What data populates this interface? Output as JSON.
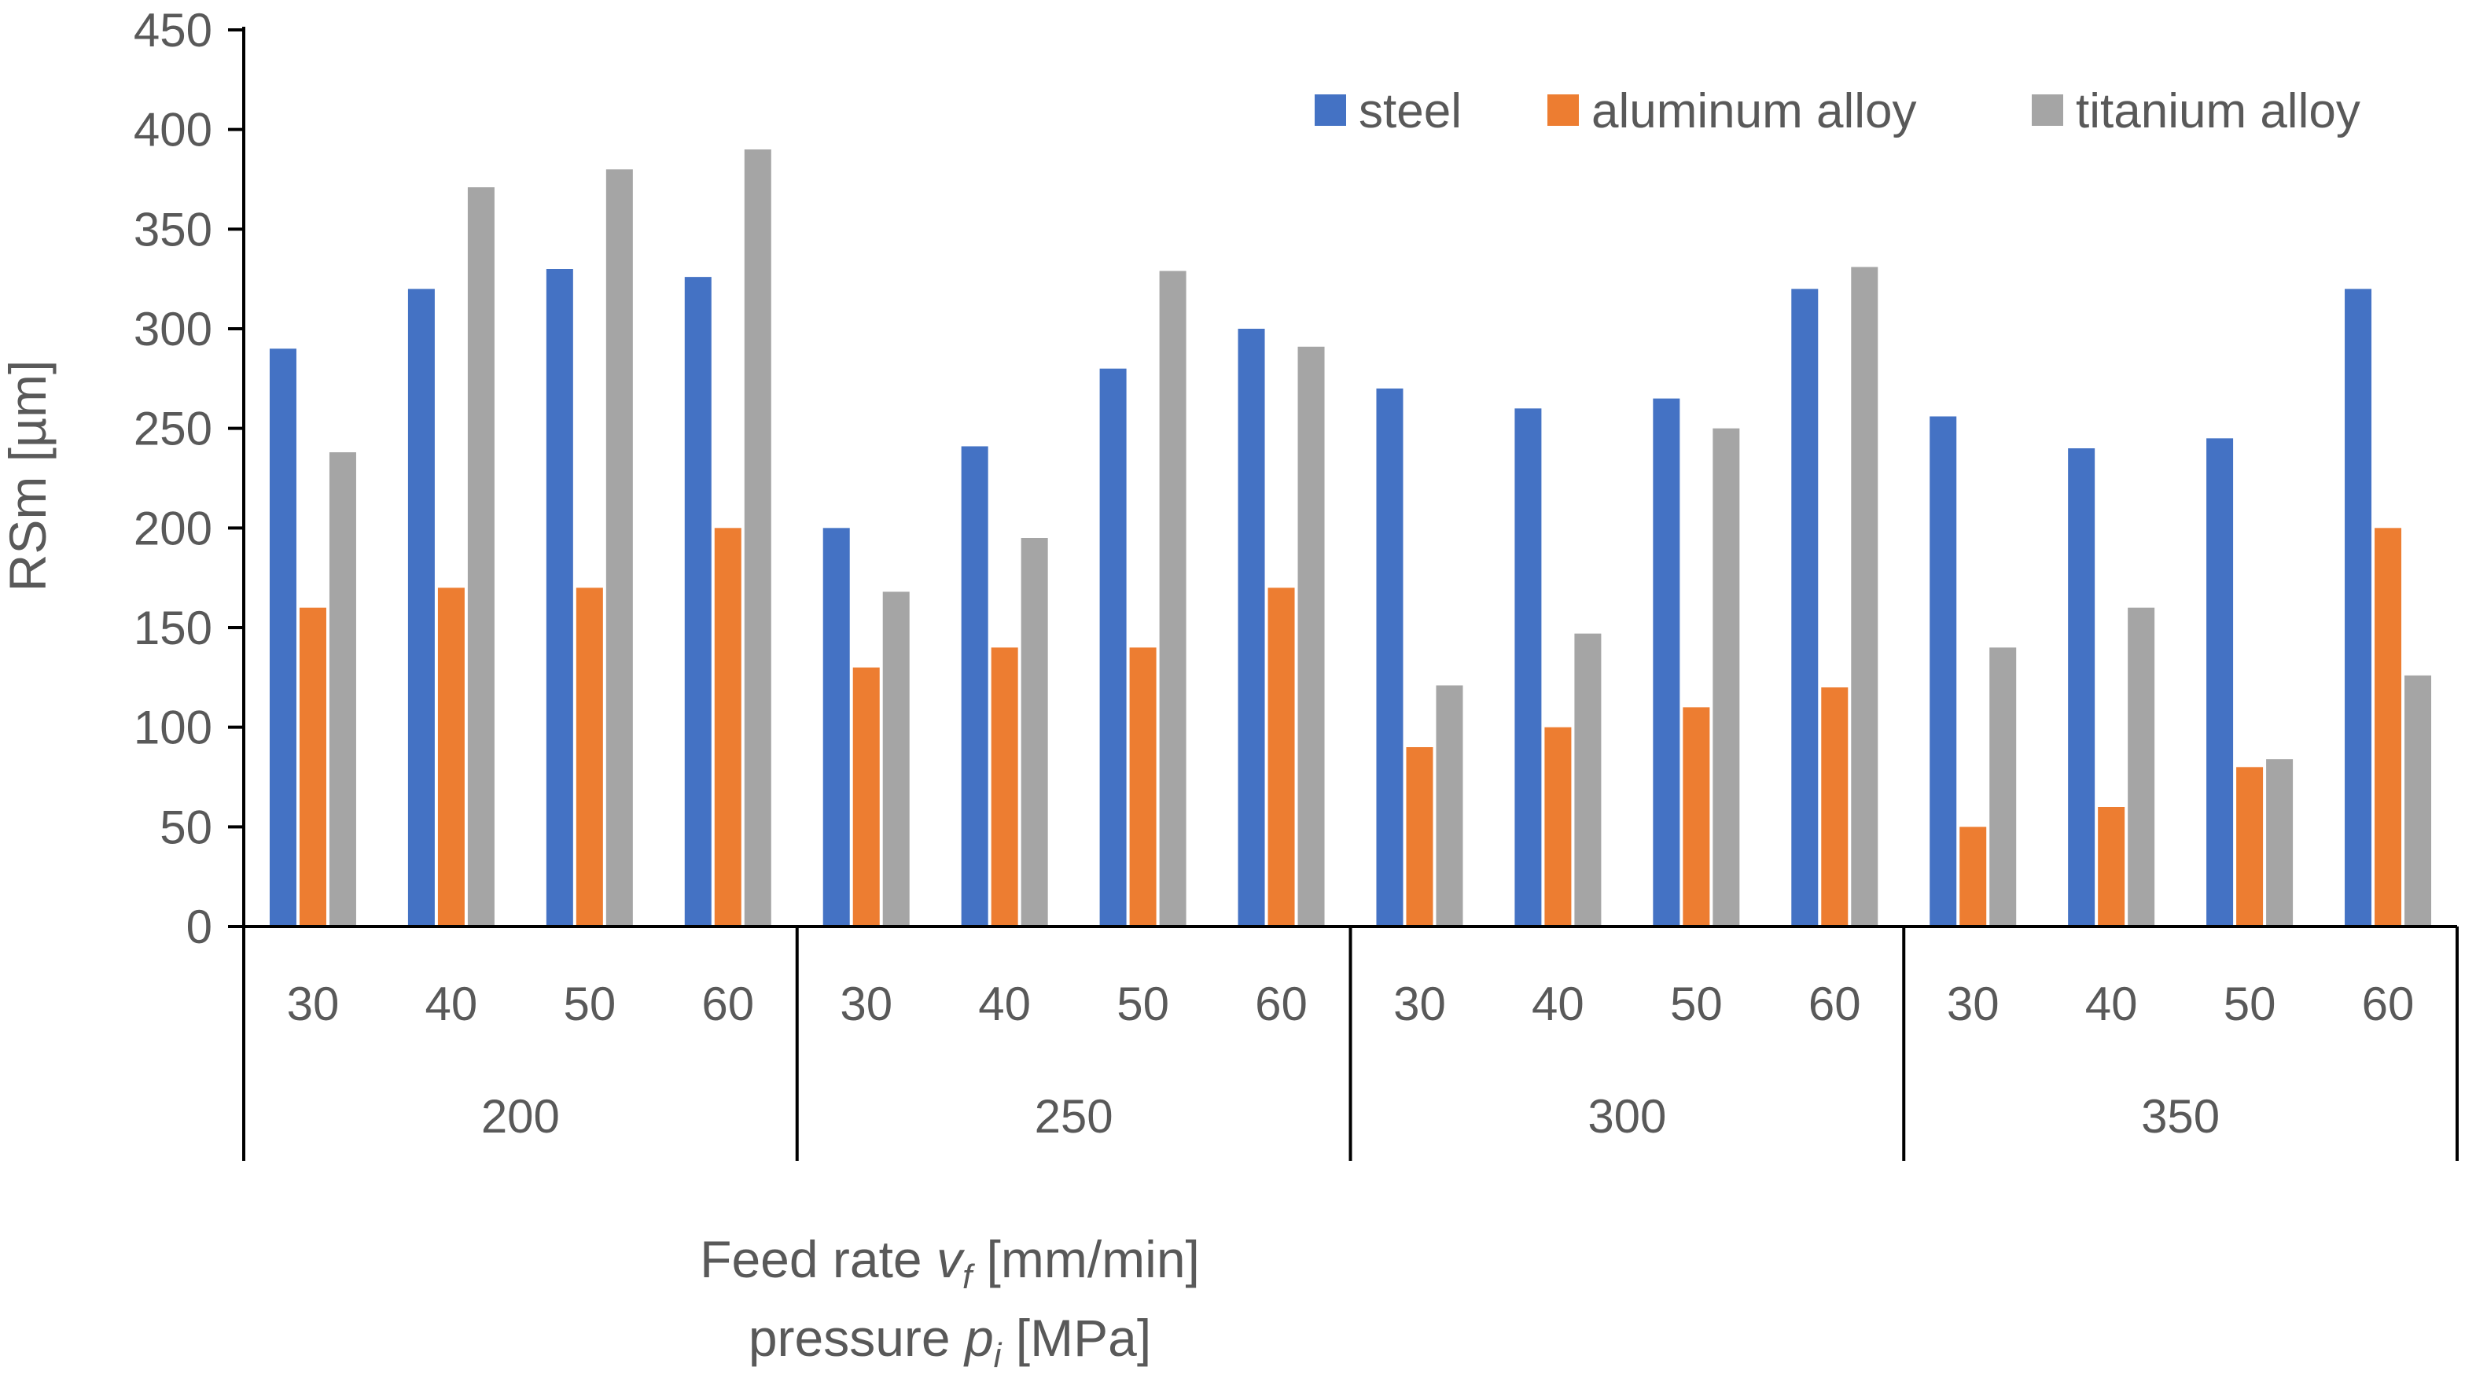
{
  "chart_data": {
    "type": "bar",
    "ylabel": "RSm [µm]",
    "xlabel": {
      "line1_prefix": "Feed rate ",
      "line1_var": "v",
      "line1_sub": "f",
      "line1_suffix": " [mm/min]",
      "line2_prefix": "pressure ",
      "line2_var": "p",
      "line2_sub": "i",
      "line2_suffix": " [MPa]"
    },
    "ylim": [
      0,
      450
    ],
    "yticks": [
      0,
      50,
      100,
      150,
      200,
      250,
      300,
      350,
      400,
      450
    ],
    "legend_position": "top-right",
    "groups": [
      "200",
      "250",
      "300",
      "350"
    ],
    "categories": [
      "30",
      "40",
      "50",
      "60",
      "30",
      "40",
      "50",
      "60",
      "30",
      "40",
      "50",
      "60",
      "30",
      "40",
      "50",
      "60"
    ],
    "series": [
      {
        "name": "steel",
        "color": "#4472C4",
        "values": [
          290,
          320,
          330,
          326,
          200,
          241,
          280,
          300,
          270,
          260,
          265,
          320,
          256,
          240,
          245,
          320
        ]
      },
      {
        "name": "aluminum alloy",
        "color": "#ED7D31",
        "values": [
          160,
          170,
          170,
          200,
          130,
          140,
          140,
          170,
          90,
          100,
          110,
          120,
          50,
          60,
          80,
          200
        ]
      },
      {
        "name": "titanium alloy",
        "color": "#A5A5A5",
        "values": [
          238,
          371,
          380,
          390,
          168,
          195,
          329,
          291,
          121,
          147,
          250,
          331,
          140,
          160,
          84,
          126
        ]
      }
    ]
  }
}
